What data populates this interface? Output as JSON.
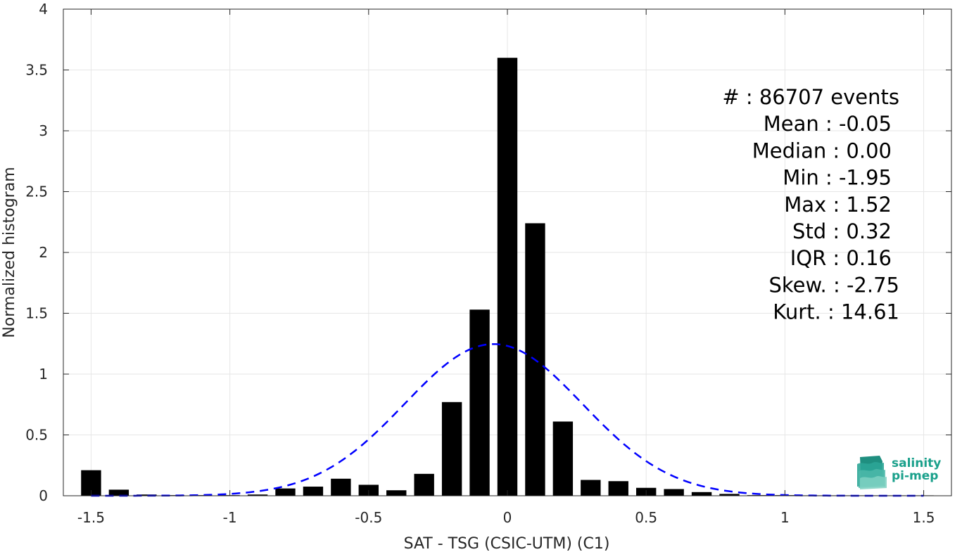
{
  "chart_data": {
    "type": "bar",
    "xlabel": "SAT - TSG (CSIC-UTM) (C1)",
    "ylabel": "Normalized histogram",
    "xlim": [
      -1.6,
      1.6
    ],
    "ylim": [
      0,
      4
    ],
    "x_ticks": [
      -1.5,
      -1,
      -0.5,
      0,
      0.5,
      1,
      1.5
    ],
    "x_tick_labels": [
      "-1.5",
      "-1",
      "-0.5",
      "0",
      "0.5",
      "1",
      "1.5"
    ],
    "y_ticks": [
      0,
      0.5,
      1,
      1.5,
      2,
      2.5,
      3,
      3.5,
      4
    ],
    "y_tick_labels": [
      "0",
      "0.5",
      "1",
      "1.5",
      "2",
      "2.5",
      "3",
      "3.5",
      "4"
    ],
    "grid": true,
    "bin_width": 0.1,
    "x": [
      -1.5,
      -1.4,
      -1.3,
      -1.2,
      -1.1,
      -1.0,
      -0.9,
      -0.8,
      -0.7,
      -0.6,
      -0.5,
      -0.4,
      -0.3,
      -0.2,
      -0.1,
      0.0,
      0.1,
      0.2,
      0.3,
      0.4,
      0.5,
      0.6,
      0.7,
      0.8,
      0.9,
      1.0,
      1.1,
      1.2,
      1.3,
      1.4,
      1.5
    ],
    "values": [
      0.21,
      0.05,
      0.01,
      0.005,
      0.005,
      0.005,
      0.01,
      0.06,
      0.075,
      0.14,
      0.09,
      0.045,
      0.18,
      0.77,
      1.53,
      3.6,
      2.24,
      0.61,
      0.13,
      0.12,
      0.065,
      0.055,
      0.03,
      0.015,
      0.005,
      0.005,
      0.003,
      0.003,
      0.002,
      0.002,
      0.002
    ],
    "bar_color": "#000000",
    "fit_curve": {
      "style": "dashed",
      "color": "#0000ff",
      "mean": -0.05,
      "std": 0.32,
      "x_range": [
        -1.5,
        1.5
      ]
    },
    "stats": [
      "#  : 86707 events",
      "Mean : -0.05",
      "Median : 0.00",
      "Min : -1.95",
      "Max : 1.52",
      "Std : 0.32",
      "IQR : 0.16",
      "Skew. : -2.75",
      "Kurt. : 14.61"
    ]
  },
  "logo": {
    "line1": "salinity",
    "line2": "pi-mep"
  }
}
